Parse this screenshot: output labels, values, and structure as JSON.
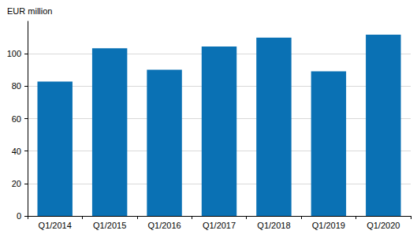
{
  "chart_data": {
    "type": "bar",
    "y_label": "EUR million",
    "categories": [
      "Q1/2014",
      "Q1/2015",
      "Q1/2016",
      "Q1/2017",
      "Q1/2018",
      "Q1/2019",
      "Q1/2020"
    ],
    "values": [
      82.8,
      103.4,
      90.1,
      104.4,
      109.9,
      89.2,
      111.8
    ],
    "color": "#0a71b4",
    "ylim": [
      0,
      120
    ],
    "yticks": [
      0,
      20,
      40,
      60,
      80,
      100
    ],
    "grid": true
  }
}
